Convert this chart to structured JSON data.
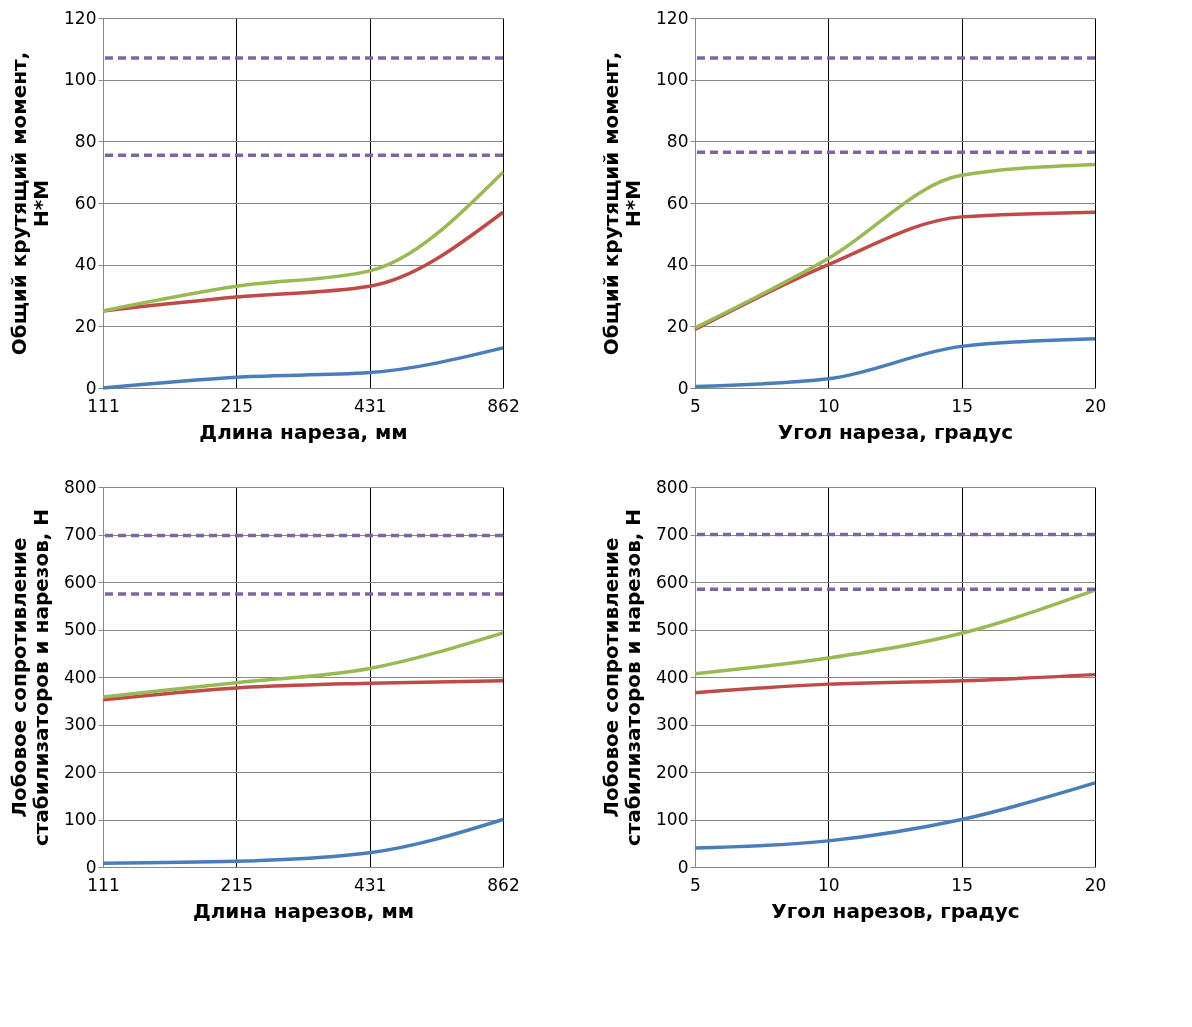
{
  "chart_data": [
    {
      "type": "line",
      "categories": [
        "111",
        "215",
        "431",
        "862"
      ],
      "xlabel": "Длина нареза, мм",
      "ylabel": "Общий крутящий момент, Н*М",
      "ylim": [
        0,
        120
      ],
      "yticks": [
        0,
        20,
        40,
        60,
        80,
        100,
        120
      ],
      "grid": true,
      "marker": "none",
      "line_style": "solid",
      "series": [
        {
          "color": "#4a7ebb",
          "values": [
            0,
            3.5,
            5,
            13
          ]
        },
        {
          "color": "#be4b48",
          "values": [
            25,
            29.5,
            33,
            57
          ]
        },
        {
          "color": "#98b954",
          "values": [
            25,
            33,
            38,
            70
          ]
        }
      ],
      "ref_lines": [
        {
          "axis": "y",
          "value": 107,
          "color": "#8064a2",
          "line_style": "dashed"
        },
        {
          "axis": "y",
          "value": 75.5,
          "color": "#8064a2",
          "line_style": "dashed"
        }
      ]
    },
    {
      "type": "line",
      "categories": [
        "5",
        "10",
        "15",
        "20"
      ],
      "xlabel": "Угол нареза, градус",
      "ylabel": "Общий крутящий момент, Н*М",
      "ylim": [
        0,
        120
      ],
      "yticks": [
        0,
        20,
        40,
        60,
        80,
        100,
        120
      ],
      "grid": true,
      "marker": "none",
      "line_style": "solid",
      "series": [
        {
          "color": "#4a7ebb",
          "values": [
            0.5,
            3,
            13.5,
            16
          ]
        },
        {
          "color": "#be4b48",
          "values": [
            19,
            40,
            55.5,
            57
          ]
        },
        {
          "color": "#98b954",
          "values": [
            19.5,
            42,
            69,
            72.5
          ]
        }
      ],
      "ref_lines": [
        {
          "axis": "y",
          "value": 107,
          "color": "#8064a2",
          "line_style": "dashed"
        },
        {
          "axis": "y",
          "value": 76.5,
          "color": "#8064a2",
          "line_style": "dashed"
        }
      ]
    },
    {
      "type": "line",
      "categories": [
        "111",
        "215",
        "431",
        "862"
      ],
      "xlabel": "Длина нарезов, мм",
      "ylabel": "Лобовое сопротивление стабилизаторов и нарезов, Н",
      "ylim": [
        0,
        800
      ],
      "yticks": [
        0,
        100,
        200,
        300,
        400,
        500,
        600,
        700,
        800
      ],
      "grid": true,
      "marker": "none",
      "line_style": "solid",
      "series": [
        {
          "color": "#4a7ebb",
          "values": [
            8,
            12,
            30,
            100
          ]
        },
        {
          "color": "#be4b48",
          "values": [
            352,
            377,
            387,
            392
          ]
        },
        {
          "color": "#98b954",
          "values": [
            358,
            388,
            418,
            493
          ]
        }
      ],
      "ref_lines": [
        {
          "axis": "y",
          "value": 698,
          "color": "#8064a2",
          "line_style": "dashed"
        },
        {
          "axis": "y",
          "value": 575,
          "color": "#8064a2",
          "line_style": "dashed"
        }
      ]
    },
    {
      "type": "line",
      "categories": [
        "5",
        "10",
        "15",
        "20"
      ],
      "xlabel": "Угол нарезов, градус",
      "ylabel": "Лобовое сопротивление стабилизаторов и нарезов, Н",
      "ylim": [
        0,
        800
      ],
      "yticks": [
        0,
        100,
        200,
        300,
        400,
        500,
        600,
        700,
        800
      ],
      "grid": true,
      "marker": "none",
      "line_style": "solid",
      "series": [
        {
          "color": "#4a7ebb",
          "values": [
            40,
            55,
            100,
            177
          ]
        },
        {
          "color": "#be4b48",
          "values": [
            367,
            385,
            392,
            405
          ]
        },
        {
          "color": "#98b954",
          "values": [
            407,
            440,
            492,
            583
          ]
        }
      ],
      "ref_lines": [
        {
          "axis": "y",
          "value": 700,
          "color": "#8064a2",
          "line_style": "dashed"
        },
        {
          "axis": "y",
          "value": 585,
          "color": "#8064a2",
          "line_style": "dashed"
        }
      ]
    }
  ]
}
